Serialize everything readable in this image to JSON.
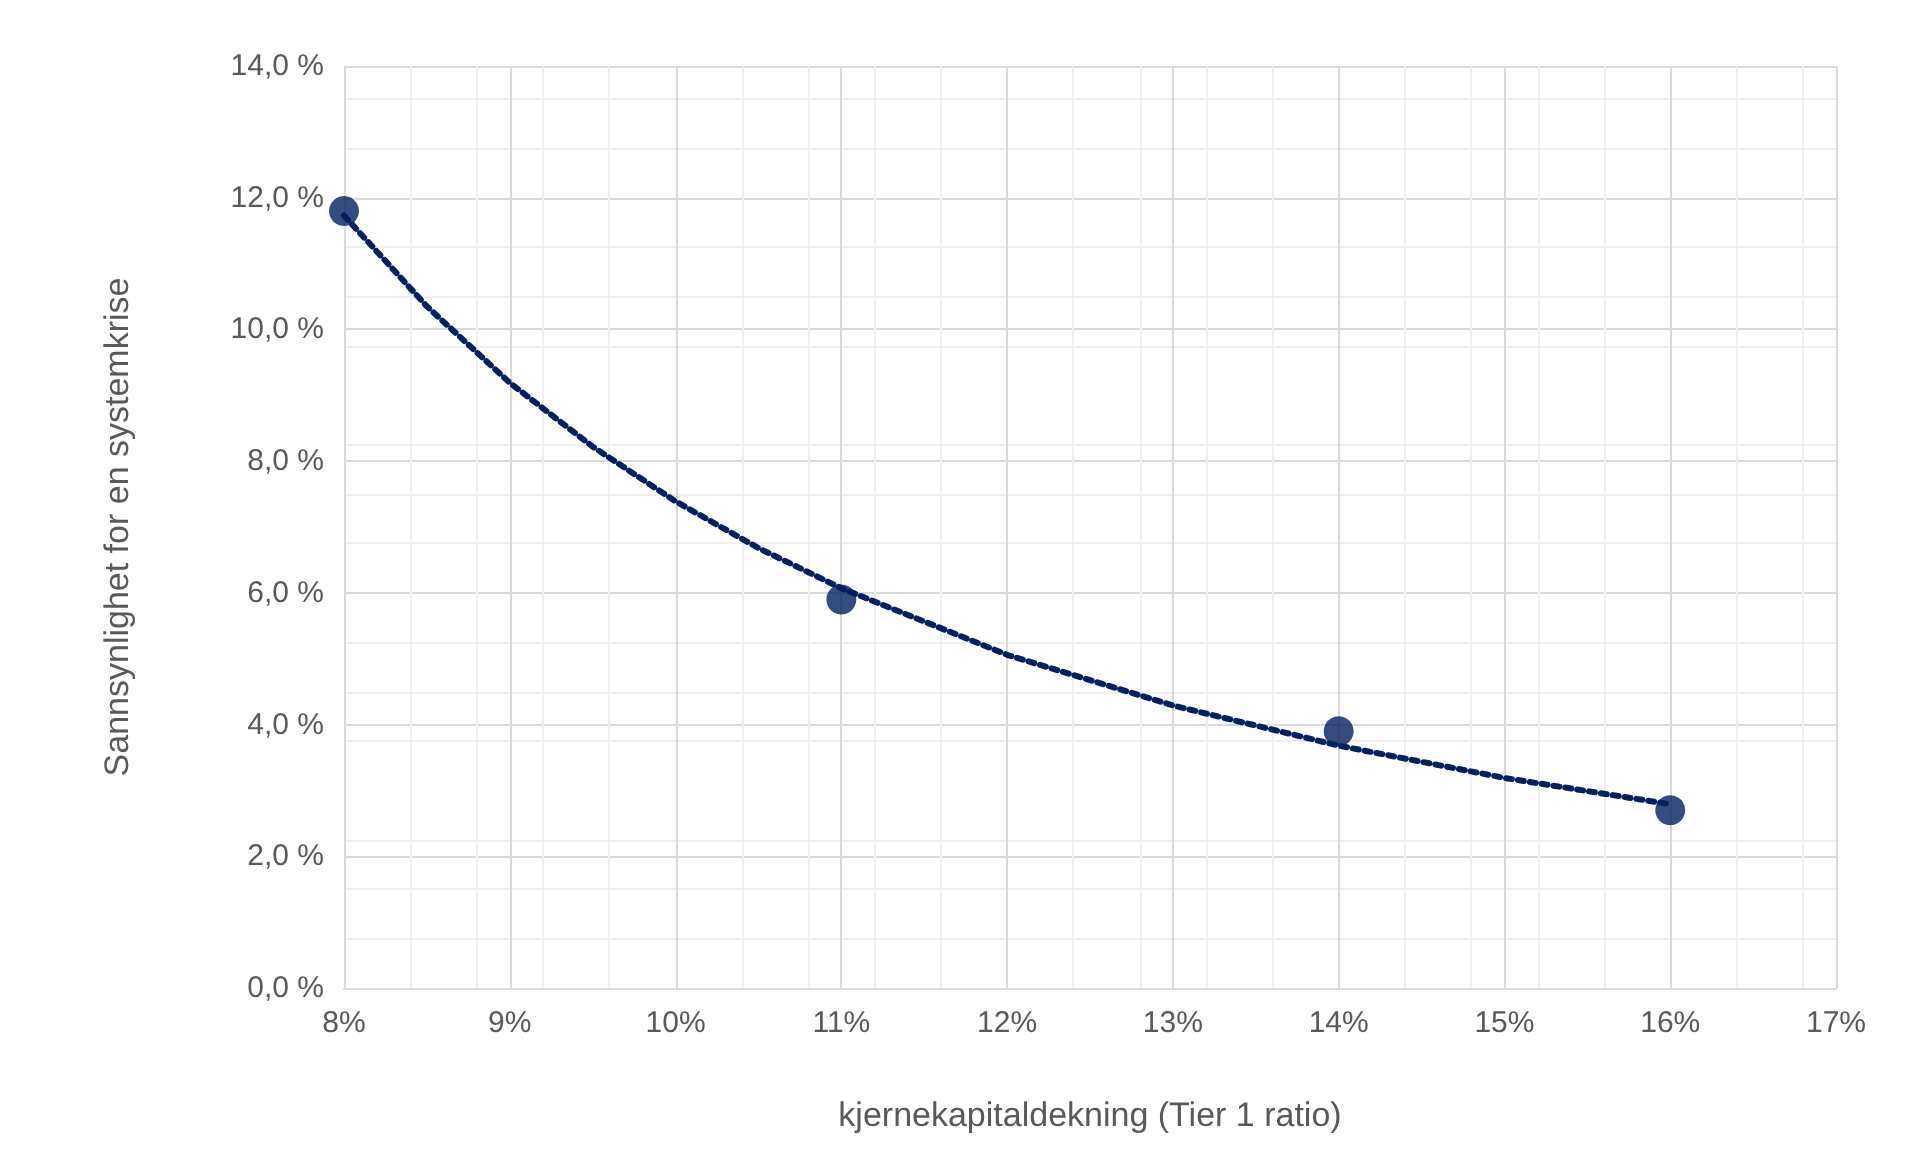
{
  "chart_data": {
    "type": "scatter",
    "xlabel": "kjernekapitaldekning (Tier 1 ratio)",
    "ylabel": "Sannsynlighet for en systemkrise",
    "series": [
      {
        "color": "#002060",
        "marker": "circle",
        "x": [
          8,
          11,
          14,
          16
        ],
        "values": [
          11.8,
          5.9,
          3.9,
          2.7
        ]
      },
      {
        "type": "line",
        "color": "#002060",
        "marker": "none",
        "line_style": "dotted",
        "x": [
          8,
          8.5,
          9,
          9.5,
          10,
          10.5,
          11,
          12,
          13,
          14,
          15,
          16
        ],
        "values": [
          11.73,
          10.35,
          9.19,
          8.22,
          7.39,
          6.68,
          6.07,
          5.06,
          4.29,
          3.68,
          3.19,
          2.79
        ]
      }
    ],
    "xlim": [
      8,
      17
    ],
    "xticks": [
      {
        "value": 8,
        "label": "8%"
      },
      {
        "value": 9,
        "label": "9%"
      },
      {
        "value": 10,
        "label": "10%"
      },
      {
        "value": 11,
        "label": "11%"
      },
      {
        "value": 12,
        "label": "12%"
      },
      {
        "value": 13,
        "label": "13%"
      },
      {
        "value": 14,
        "label": "14%"
      },
      {
        "value": 15,
        "label": "15%"
      },
      {
        "value": 16,
        "label": "16%"
      },
      {
        "value": 17,
        "label": "17%"
      }
    ],
    "ylim": [
      0,
      14
    ],
    "yticks": [
      {
        "value": 0,
        "label": "0,0 %"
      },
      {
        "value": 2,
        "label": "2,0 %"
      },
      {
        "value": 4,
        "label": "4,0 %"
      },
      {
        "value": 6,
        "label": "6,0 %"
      },
      {
        "value": 8,
        "label": "8,0 %"
      },
      {
        "value": 10,
        "label": "10,0 %"
      },
      {
        "value": 12,
        "label": "12,0 %"
      },
      {
        "value": 14,
        "label": "14,0 %"
      }
    ],
    "grid": true
  }
}
